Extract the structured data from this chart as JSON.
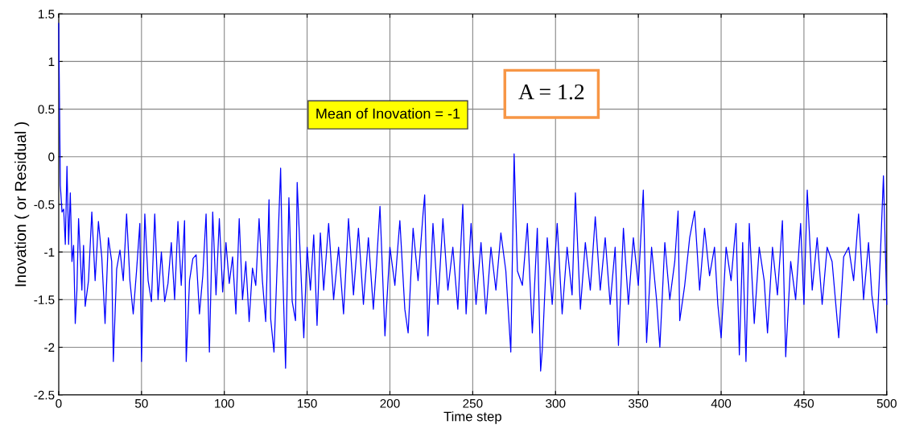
{
  "chart_data": {
    "type": "line",
    "xlabel": "Time step",
    "ylabel": "Inovation ( or Residual )",
    "annotations": [
      "Mean of Inovation = -1",
      "A = 1.2"
    ],
    "series": [
      {
        "color": "#0000ff",
        "x": [
          0,
          1,
          2,
          3,
          4,
          5,
          6,
          7,
          8,
          9,
          10,
          11,
          12,
          14,
          15,
          16,
          18,
          20,
          22,
          24,
          26,
          28,
          30,
          32,
          33,
          35,
          37,
          39,
          41,
          43,
          45,
          47,
          49,
          50,
          52,
          54,
          56,
          58,
          60,
          62,
          64,
          66,
          68,
          70,
          72,
          74,
          76,
          77,
          79,
          81,
          83,
          85,
          87,
          89,
          91,
          93,
          95,
          97,
          99,
          101,
          103,
          105,
          107,
          109,
          111,
          113,
          115,
          117,
          119,
          121,
          123,
          125,
          127,
          128,
          130,
          132,
          134,
          135,
          137,
          139,
          141,
          143,
          144,
          146,
          148,
          150,
          152,
          154,
          156,
          158,
          160,
          163,
          166,
          169,
          172,
          175,
          178,
          181,
          184,
          187,
          190,
          192,
          194,
          197,
          200,
          203,
          206,
          209,
          211,
          214,
          217,
          220,
          221,
          223,
          226,
          229,
          232,
          235,
          238,
          241,
          244,
          246,
          249,
          252,
          255,
          258,
          261,
          264,
          267,
          270,
          273,
          275,
          277,
          280,
          283,
          286,
          289,
          291,
          292,
          295,
          298,
          301,
          304,
          307,
          310,
          312,
          315,
          318,
          321,
          324,
          327,
          330,
          333,
          336,
          338,
          341,
          344,
          347,
          350,
          353,
          355,
          358,
          361,
          363,
          366,
          369,
          372,
          374,
          375,
          378,
          381,
          384,
          387,
          390,
          393,
          396,
          398,
          400,
          403,
          406,
          409,
          411,
          413,
          415,
          417,
          420,
          423,
          426,
          428,
          431,
          434,
          437,
          439,
          442,
          445,
          448,
          450,
          452,
          455,
          458,
          461,
          464,
          467,
          471,
          474,
          477,
          480,
          483,
          486,
          489,
          491,
          494,
          496,
          498,
          500
        ],
        "values": [
          1.4,
          -0.3,
          -0.58,
          -0.55,
          -0.92,
          -0.1,
          -0.92,
          -0.38,
          -1.1,
          -0.93,
          -1.75,
          -1.4,
          -0.65,
          -1.4,
          -0.93,
          -1.57,
          -1.3,
          -0.58,
          -1.3,
          -0.68,
          -1.05,
          -1.75,
          -0.85,
          -1.1,
          -2.15,
          -1.18,
          -0.98,
          -1.3,
          -0.6,
          -1.3,
          -1.65,
          -1.2,
          -0.7,
          -2.15,
          -0.6,
          -1.3,
          -1.52,
          -0.6,
          -1.5,
          -1.0,
          -1.52,
          -1.33,
          -0.9,
          -1.5,
          -0.68,
          -1.35,
          -0.67,
          -2.15,
          -1.3,
          -1.07,
          -1.03,
          -1.65,
          -1.25,
          -0.6,
          -2.05,
          -0.58,
          -1.45,
          -0.65,
          -1.42,
          -0.9,
          -1.33,
          -1.05,
          -1.65,
          -0.65,
          -1.5,
          -1.1,
          -1.73,
          -1.17,
          -1.35,
          -0.65,
          -1.3,
          -1.73,
          -0.45,
          -1.7,
          -2.05,
          -1.1,
          -0.12,
          -1.05,
          -2.22,
          -0.43,
          -1.52,
          -1.72,
          -0.27,
          -1.1,
          -1.9,
          -0.95,
          -1.4,
          -0.82,
          -1.77,
          -0.8,
          -1.4,
          -0.7,
          -1.5,
          -0.95,
          -1.65,
          -0.65,
          -1.45,
          -0.75,
          -1.55,
          -0.85,
          -1.6,
          -1.1,
          -0.52,
          -1.88,
          -0.95,
          -1.35,
          -0.67,
          -1.6,
          -1.85,
          -0.75,
          -1.3,
          -0.6,
          -0.4,
          -1.88,
          -0.7,
          -1.55,
          -0.65,
          -1.4,
          -0.95,
          -1.6,
          -0.5,
          -1.65,
          -0.7,
          -1.55,
          -0.9,
          -1.65,
          -0.95,
          -1.4,
          -0.8,
          -1.2,
          -2.05,
          0.03,
          -1.2,
          -1.35,
          -0.7,
          -1.85,
          -0.75,
          -2.25,
          -2.03,
          -0.85,
          -1.55,
          -0.7,
          -1.65,
          -0.95,
          -1.45,
          -0.38,
          -1.6,
          -0.9,
          -1.4,
          -0.63,
          -1.4,
          -0.85,
          -1.55,
          -0.95,
          -1.98,
          -0.75,
          -1.55,
          -0.85,
          -1.35,
          -0.35,
          -1.95,
          -0.95,
          -1.5,
          -2.0,
          -0.9,
          -1.5,
          -1.1,
          -0.57,
          -1.72,
          -1.35,
          -0.85,
          -0.57,
          -1.4,
          -0.75,
          -1.25,
          -0.95,
          -1.55,
          -1.9,
          -0.95,
          -1.3,
          -0.7,
          -2.08,
          -0.9,
          -2.15,
          -0.7,
          -1.75,
          -0.95,
          -1.3,
          -1.85,
          -0.95,
          -1.45,
          -0.67,
          -2.1,
          -1.1,
          -1.5,
          -0.7,
          -1.55,
          -0.35,
          -1.4,
          -0.85,
          -1.55,
          -0.95,
          -1.1,
          -1.9,
          -1.05,
          -0.95,
          -1.3,
          -0.6,
          -1.5,
          -0.9,
          -1.45,
          -1.85,
          -1.1,
          -0.2,
          -1.55
        ]
      }
    ],
    "xlim": [
      0,
      500
    ],
    "xticks": [
      0,
      50,
      100,
      150,
      200,
      250,
      300,
      350,
      400,
      450,
      500
    ],
    "ylim": [
      -2.5,
      1.5
    ],
    "yticks": [
      -2.5,
      -2,
      -1.5,
      -1,
      -0.5,
      0,
      0.5,
      1,
      1.5
    ],
    "grid": true,
    "legend": false
  }
}
